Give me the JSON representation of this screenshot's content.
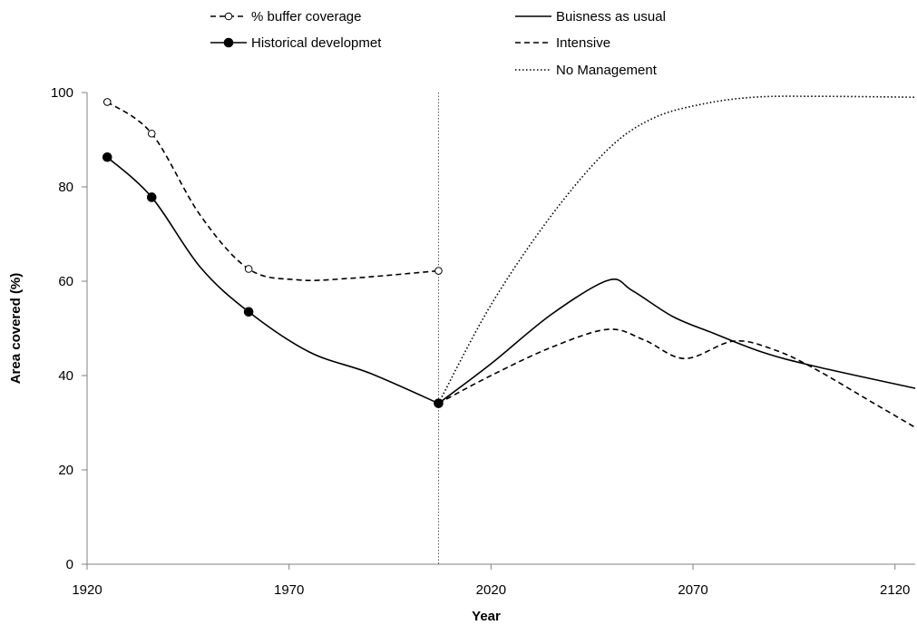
{
  "chart_data": {
    "type": "line",
    "title": "",
    "xlabel": "Year",
    "ylabel": "Area covered (%)",
    "xlim": [
      1920,
      2125
    ],
    "ylim": [
      0,
      100
    ],
    "xticks": [
      1920,
      1970,
      2020,
      2070,
      2120
    ],
    "yticks": [
      0,
      20,
      40,
      60,
      80,
      100
    ],
    "grid": false,
    "reference_line": {
      "x": 2007
    },
    "legend": {
      "placement": "top",
      "entries": [
        {
          "label": "% buffer coverage",
          "series": 0
        },
        {
          "label": "Buisness as usual",
          "series": 2
        },
        {
          "label": "Historical developmet",
          "series": 1
        },
        {
          "label": "Intensive",
          "series": 3
        },
        {
          "label": "No Management",
          "series": 4
        }
      ]
    },
    "series": [
      {
        "name": "% buffer coverage",
        "style": "dashed",
        "marker": "open-circle",
        "color": "#000000",
        "points": [
          [
            1925,
            98
          ],
          [
            1936,
            91.3
          ],
          [
            1960,
            62.6
          ],
          [
            2007,
            62.2
          ]
        ],
        "curve": [
          [
            1925,
            98
          ],
          [
            1936,
            91.3
          ],
          [
            1948,
            74
          ],
          [
            1960,
            62.6
          ],
          [
            1972,
            60.3
          ],
          [
            1985,
            60.6
          ],
          [
            2007,
            62.2
          ]
        ]
      },
      {
        "name": "Historical developmet",
        "style": "solid",
        "marker": "filled-circle",
        "color": "#000000",
        "points": [
          [
            1925,
            86.3
          ],
          [
            1936,
            77.8
          ],
          [
            1960,
            53.5
          ],
          [
            2007,
            34.1
          ]
        ],
        "curve": [
          [
            1925,
            86.3
          ],
          [
            1936,
            77.8
          ],
          [
            1948,
            63
          ],
          [
            1960,
            53.5
          ],
          [
            1975,
            45
          ],
          [
            1990,
            40.5
          ],
          [
            2007,
            34.1
          ]
        ]
      },
      {
        "name": "Buisness as usual",
        "style": "solid",
        "marker": "none",
        "color": "#000000",
        "curve": [
          [
            2007,
            34.1
          ],
          [
            2020,
            42.5
          ],
          [
            2035,
            53
          ],
          [
            2049,
            60.2
          ],
          [
            2055,
            58
          ],
          [
            2065,
            52.5
          ],
          [
            2075,
            49
          ],
          [
            2087,
            45
          ],
          [
            2100,
            42
          ],
          [
            2125,
            37.3
          ]
        ]
      },
      {
        "name": "Intensive",
        "style": "dashed",
        "marker": "none",
        "color": "#000000",
        "curve": [
          [
            2007,
            34.1
          ],
          [
            2020,
            40
          ],
          [
            2035,
            46
          ],
          [
            2049,
            49.8
          ],
          [
            2058,
            47.5
          ],
          [
            2068,
            43.6
          ],
          [
            2080,
            47.3
          ],
          [
            2090,
            45.5
          ],
          [
            2100,
            41.5
          ],
          [
            2115,
            34
          ],
          [
            2125,
            29
          ]
        ]
      },
      {
        "name": "No Management",
        "style": "dotted",
        "marker": "none",
        "color": "#000000",
        "curve": [
          [
            2007,
            34.1
          ],
          [
            2020,
            55
          ],
          [
            2035,
            74
          ],
          [
            2049,
            88
          ],
          [
            2060,
            94.5
          ],
          [
            2072,
            97.5
          ],
          [
            2085,
            99
          ],
          [
            2100,
            99.2
          ],
          [
            2125,
            99
          ]
        ]
      }
    ]
  }
}
